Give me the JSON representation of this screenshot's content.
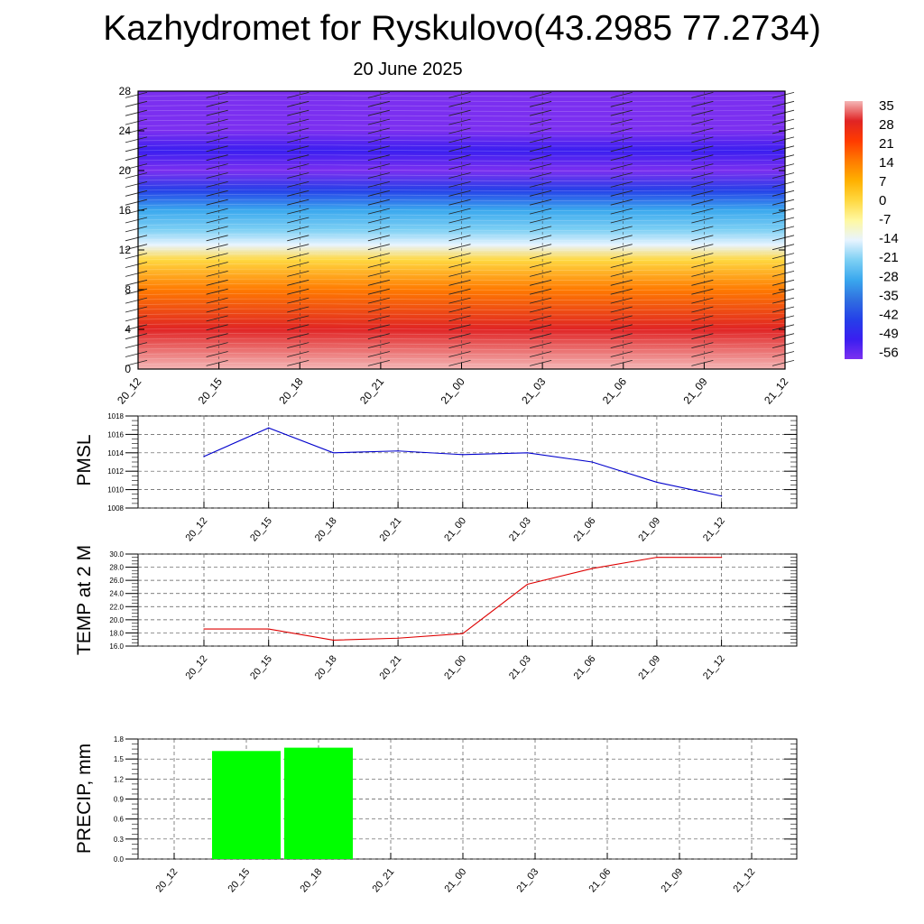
{
  "title": "Kazhydromet for Ryskulovo(43.2985 77.2734)",
  "subtitle": "20 June 2025",
  "chart_data": [
    {
      "type": "heatmap",
      "name": "cross-section",
      "x_categories": [
        "20_12",
        "20_15",
        "20_18",
        "20_21",
        "21_00",
        "21_03",
        "21_06",
        "21_09",
        "21_12"
      ],
      "y_ticks": [
        0,
        4,
        8,
        12,
        16,
        20,
        24,
        28
      ],
      "ylim": [
        0,
        28
      ],
      "colorbar": {
        "labels": [
          "35",
          "28",
          "21",
          "14",
          "7",
          "0",
          "-7",
          "-14",
          "-21",
          "-28",
          "-35",
          "-42",
          "-49",
          "-56"
        ],
        "colors": [
          "#f4b6b6",
          "#e02424",
          "#ff3a00",
          "#ff7a00",
          "#ffb000",
          "#ffd840",
          "#fff8a0",
          "#e8f4ff",
          "#7ed0f4",
          "#3aa8ee",
          "#3070e0",
          "#2540e8",
          "#3a1ef0",
          "#7b2ff0"
        ]
      },
      "temperature_levels": [
        {
          "height": 0,
          "value": 33
        },
        {
          "height": 4,
          "value": 26
        },
        {
          "height": 8,
          "value": 14
        },
        {
          "height": 11,
          "value": 2
        },
        {
          "height": 12.5,
          "value": -12
        },
        {
          "height": 14,
          "value": -20
        },
        {
          "height": 16,
          "value": -30
        },
        {
          "height": 18,
          "value": -45
        },
        {
          "height": 20,
          "value": -56
        },
        {
          "height": 22,
          "value": -52
        },
        {
          "height": 24,
          "value": -56
        },
        {
          "height": 28,
          "value": -58
        }
      ]
    },
    {
      "type": "line",
      "name": "pmsl",
      "ylabel": "PMSL",
      "categories": [
        "20_12",
        "20_15",
        "20_18",
        "20_21",
        "21_00",
        "21_03",
        "21_06",
        "21_09",
        "21_12"
      ],
      "ylim": [
        1008,
        1018
      ],
      "y_ticks": [
        "1008",
        "1010",
        "1012",
        "1014",
        "1016",
        "1018"
      ],
      "series": [
        {
          "values": [
            1013.6,
            1016.7,
            1014.0,
            1014.2,
            1013.8,
            1014.0,
            1013.0,
            1010.8,
            1009.3
          ],
          "color": "#0000cc"
        }
      ],
      "grid": true
    },
    {
      "type": "line",
      "name": "temp2m",
      "ylabel": "TEMP at 2 M",
      "categories": [
        "20_12",
        "20_15",
        "20_18",
        "20_21",
        "21_00",
        "21_03",
        "21_06",
        "21_09",
        "21_12"
      ],
      "ylim": [
        16,
        30
      ],
      "y_ticks": [
        "16.0",
        "18.0",
        "20.0",
        "22.0",
        "24.0",
        "26.0",
        "28.0",
        "30.0"
      ],
      "series": [
        {
          "values": [
            18.6,
            18.6,
            16.9,
            17.2,
            17.9,
            25.4,
            27.8,
            29.5,
            29.5
          ],
          "color": "#dd0000"
        }
      ],
      "grid": true
    },
    {
      "type": "bar",
      "name": "precip",
      "ylabel": "PRECIP, mm",
      "categories": [
        "20_12",
        "20_15",
        "20_18",
        "20_21",
        "21_00",
        "21_03",
        "21_06",
        "21_09",
        "21_12"
      ],
      "ylim": [
        0,
        1.8
      ],
      "y_ticks": [
        "0.0",
        "0.3",
        "0.6",
        "0.9",
        "1.2",
        "1.5",
        "1.8"
      ],
      "values": [
        0,
        1.62,
        1.67,
        0,
        0,
        0,
        0,
        0,
        0
      ],
      "color": "#00ff00",
      "grid": true
    }
  ]
}
